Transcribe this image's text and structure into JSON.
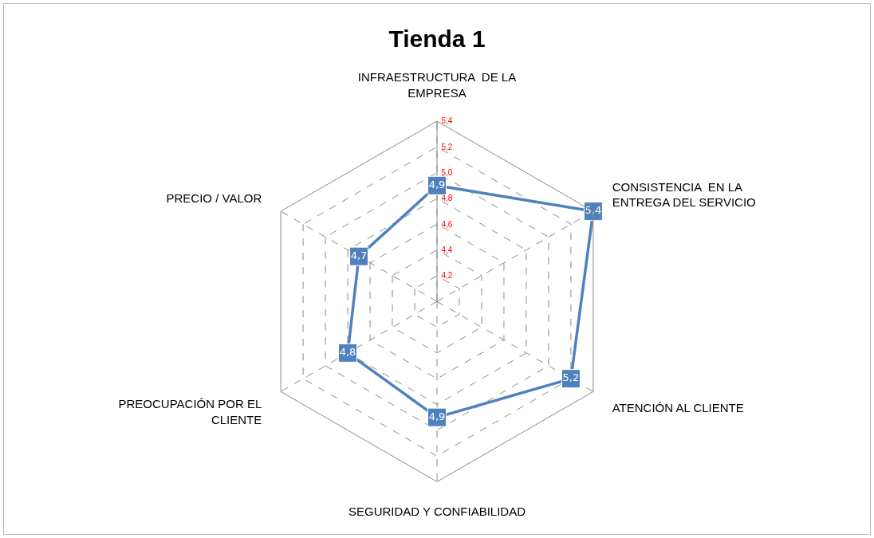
{
  "chart_data": {
    "type": "radar",
    "title": "Tienda 1",
    "categories": [
      "INFRAESTRUCTURA  DE LA EMPRESA",
      "CONSISTENCIA  EN LA ENTREGA DEL SERVICIO",
      "ATENCIÓN AL CLIENTE",
      "SEGURIDAD Y CONFIABILIDAD",
      "PREOCUPACIÓN POR EL CLIENTE",
      "PRECIO / VALOR"
    ],
    "series": [
      {
        "color": "#4f81bd",
        "values": [
          4.9,
          5.4,
          5.2,
          4.9,
          4.8,
          4.7
        ],
        "value_labels": [
          "4,9",
          "5,4",
          "5,2",
          "4,9",
          "4,8",
          "4,7"
        ]
      }
    ],
    "ylim": [
      4.0,
      5.4
    ],
    "yticks": [
      {
        "value": 4.2,
        "label": "4,2"
      },
      {
        "value": 4.4,
        "label": "4,4"
      },
      {
        "value": 4.6,
        "label": "4,6"
      },
      {
        "value": 4.8,
        "label": "4,8"
      },
      {
        "value": 5.0,
        "label": "5,0"
      },
      {
        "value": 5.2,
        "label": "5,2"
      },
      {
        "value": 5.4,
        "label": "5,4"
      }
    ],
    "grid": true,
    "marker": "square",
    "line_style": "solid"
  }
}
